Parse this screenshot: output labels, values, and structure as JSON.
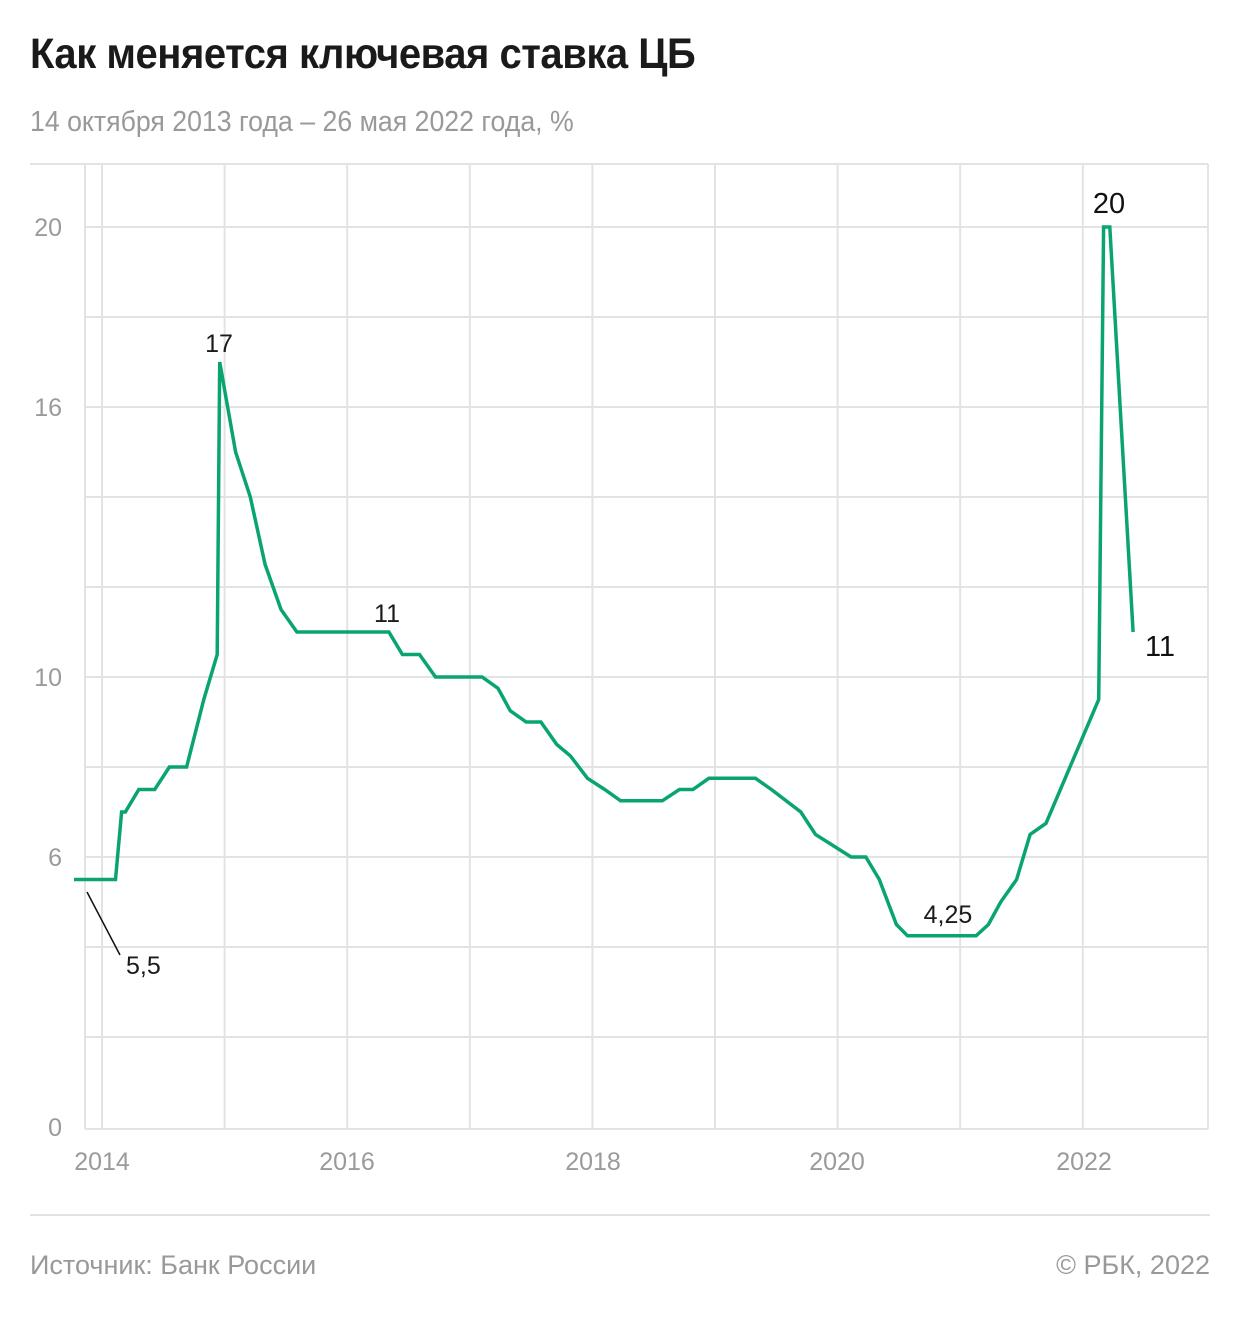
{
  "header": {
    "title": "Как меняется ключевая ставка ЦБ",
    "subtitle": "14 октября 2013 года – 26 мая 2022 года, %"
  },
  "footer": {
    "source": "Источник: Банк России",
    "copyright": "© РБК, 2022"
  },
  "colors": {
    "line": "#0aa56e",
    "grid": "#e3e3e3",
    "tick_text": "#9a9a9a",
    "annotation_text": "#1a1a1a"
  },
  "chart_data": {
    "type": "line",
    "title": "Как меняется ключевая ставка ЦБ",
    "subtitle": "14 октября 2013 года – 26 мая 2022 года, %",
    "xlabel": "",
    "ylabel": "%",
    "xlim": [
      2013.86,
      2023.0
    ],
    "ylim": [
      0,
      21
    ],
    "yticks": [
      0,
      6,
      10,
      16,
      20
    ],
    "ygrid_step": 2,
    "xticks": [
      2014,
      2016,
      2018,
      2020,
      2022
    ],
    "xgrid": [
      2014,
      2015,
      2016,
      2017,
      2018,
      2019,
      2020,
      2021,
      2022
    ],
    "grid": true,
    "legend": null,
    "series": [
      {
        "name": "Ключевая ставка ЦБ",
        "x": [
          2013.78,
          2014.11,
          2014.16,
          2014.19,
          2014.3,
          2014.43,
          2014.55,
          2014.69,
          2014.83,
          2014.94,
          2014.96,
          2015.09,
          2015.21,
          2015.33,
          2015.46,
          2015.59,
          2016.34,
          2016.45,
          2016.59,
          2016.72,
          2017.1,
          2017.23,
          2017.33,
          2017.46,
          2017.58,
          2017.71,
          2017.82,
          2017.96,
          2018.1,
          2018.23,
          2018.57,
          2018.71,
          2018.82,
          2018.95,
          2019.33,
          2019.46,
          2019.7,
          2019.82,
          2020.11,
          2020.23,
          2020.34,
          2020.48,
          2020.57,
          2021.13,
          2021.23,
          2021.33,
          2021.46,
          2021.57,
          2021.7,
          2022.13,
          2022.17,
          2022.22,
          2022.41
        ],
        "values": [
          5.5,
          5.5,
          7.0,
          7.0,
          7.5,
          7.5,
          8.0,
          8.0,
          9.5,
          10.5,
          17.0,
          15.0,
          14.0,
          12.5,
          11.5,
          11.0,
          11.0,
          10.5,
          10.5,
          10.0,
          10.0,
          9.75,
          9.25,
          9.0,
          9.0,
          8.5,
          8.25,
          7.75,
          7.5,
          7.25,
          7.25,
          7.5,
          7.5,
          7.75,
          7.75,
          7.5,
          7.0,
          6.5,
          6.0,
          6.0,
          5.5,
          4.5,
          4.25,
          4.25,
          4.5,
          5.0,
          5.5,
          6.5,
          6.75,
          9.5,
          20.0,
          20.0,
          11.0
        ]
      }
    ],
    "annotations": [
      {
        "text": "5,5",
        "x": 2013.78,
        "value": 5.5,
        "callout": true
      },
      {
        "text": "17",
        "x": 2014.96,
        "value": 17.0
      },
      {
        "text": "11",
        "x": 2016.34,
        "value": 11.0
      },
      {
        "text": "4,25",
        "x": 2020.84,
        "value": 4.25
      },
      {
        "text": "20",
        "x": 2022.19,
        "value": 20.0
      },
      {
        "text": "11",
        "x": 2022.41,
        "value": 11.0
      }
    ]
  },
  "labels": {
    "ann_55": "5,5",
    "ann_17": "17",
    "ann_11a": "11",
    "ann_425": "4,25",
    "ann_20": "20",
    "ann_11b": "11",
    "y": [
      "0",
      "6",
      "10",
      "16",
      "20"
    ],
    "x": [
      "2014",
      "2016",
      "2018",
      "2020",
      "2022"
    ]
  }
}
